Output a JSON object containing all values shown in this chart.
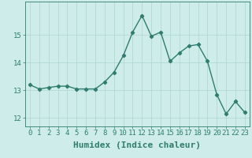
{
  "x": [
    0,
    1,
    2,
    3,
    4,
    5,
    6,
    7,
    8,
    9,
    10,
    11,
    12,
    13,
    14,
    15,
    16,
    17,
    18,
    19,
    20,
    21,
    22,
    23
  ],
  "y": [
    13.2,
    13.05,
    13.1,
    13.15,
    13.15,
    13.05,
    13.05,
    13.05,
    13.3,
    13.65,
    14.25,
    15.1,
    15.7,
    14.95,
    15.1,
    14.05,
    14.35,
    14.6,
    14.65,
    14.05,
    12.85,
    12.15,
    12.6,
    12.2
  ],
  "line_color": "#2e7d6e",
  "marker": "D",
  "marker_size": 2.2,
  "linewidth": 1.0,
  "xlabel": "Humidex (Indice chaleur)",
  "ylim": [
    11.7,
    16.2
  ],
  "xlim": [
    -0.5,
    23.5
  ],
  "yticks": [
    12,
    13,
    14,
    15
  ],
  "xticks": [
    0,
    1,
    2,
    3,
    4,
    5,
    6,
    7,
    8,
    9,
    10,
    11,
    12,
    13,
    14,
    15,
    16,
    17,
    18,
    19,
    20,
    21,
    22,
    23
  ],
  "bg_color": "#ceecea",
  "grid_color": "#aed4d2",
  "tick_fontsize": 6.5,
  "xlabel_fontsize": 8,
  "text_color": "#2e7d6e",
  "axis_color": "#2e7d6e"
}
